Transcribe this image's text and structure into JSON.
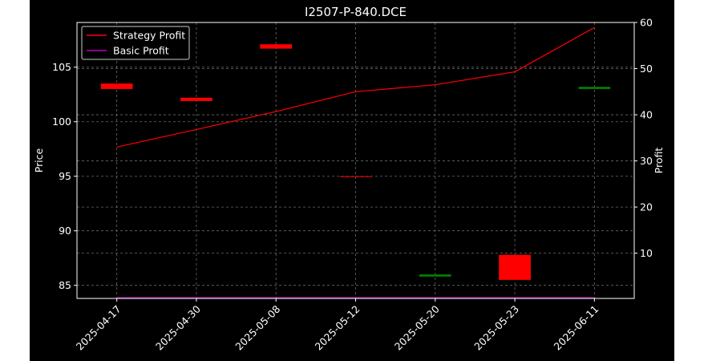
{
  "chart_data": {
    "type": "candlestick_with_lines",
    "title": "I2507-P-840.DCE",
    "ylabel_left": "Price",
    "ylabel_right": "Profit",
    "categories": [
      "2025-04-17",
      "2025-04-30",
      "2025-05-08",
      "2025-05-12",
      "2025-05-20",
      "2025-05-23",
      "2025-06-11"
    ],
    "y_left_ticks": [
      85,
      90,
      95,
      100,
      105
    ],
    "y_left_range": [
      83.8,
      109.1
    ],
    "y_right_ticks": [
      10,
      20,
      30,
      40,
      50,
      60
    ],
    "y_right_range": [
      0.2,
      60
    ],
    "grid": true,
    "legend_position": "top-left",
    "candles": [
      {
        "x": "2025-04-17",
        "open": 103.5,
        "close": 103.0,
        "direction": "down"
      },
      {
        "x": "2025-04-30",
        "open": 102.2,
        "close": 101.9,
        "direction": "down"
      },
      {
        "x": "2025-05-08",
        "open": 107.1,
        "close": 106.7,
        "direction": "down"
      },
      {
        "x": "2025-05-12",
        "open": 95.0,
        "close": 95.0,
        "direction": "down"
      },
      {
        "x": "2025-05-20",
        "open": 85.8,
        "close": 86.0,
        "direction": "up"
      },
      {
        "x": "2025-05-23",
        "open": 87.8,
        "close": 85.5,
        "direction": "down"
      },
      {
        "x": "2025-06-11",
        "open": 103.0,
        "close": 103.2,
        "direction": "up"
      }
    ],
    "series": [
      {
        "name": "Strategy Profit",
        "axis": "right",
        "color": "#ff0000",
        "values": [
          33.0,
          36.8,
          40.7,
          45.0,
          46.5,
          49.3,
          58.9
        ]
      },
      {
        "name": "Basic Profit",
        "axis": "right",
        "color": "#bf00bf",
        "values": [
          0.3,
          0.3,
          0.3,
          0.3,
          0.3,
          0.3,
          0.3
        ]
      }
    ],
    "colors": {
      "up": "#008000",
      "down": "#ff0000",
      "grid": "#6a6a6a",
      "axis": "#ffffff",
      "background": "#000000"
    }
  }
}
